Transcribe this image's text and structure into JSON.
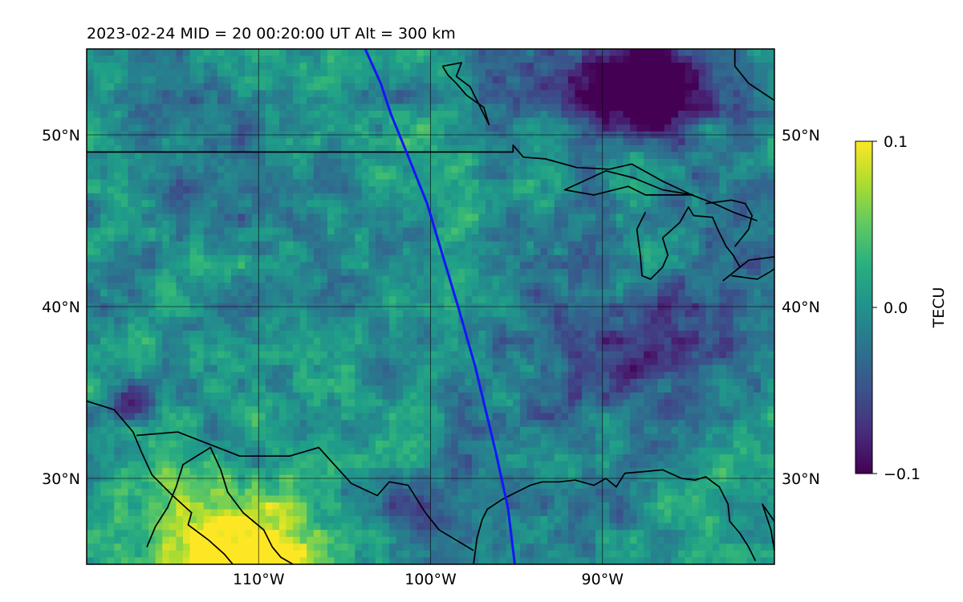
{
  "chart_data": {
    "type": "heatmap",
    "title": "2023-02-24  MID =  20    00:20:00  UT  Alt = 300 km",
    "map": {
      "projection": "plate-carree",
      "lon_range": [
        -120,
        -80
      ],
      "lat_range": [
        25,
        55
      ],
      "lon_ticks": [
        -110,
        -100,
        -90
      ],
      "lon_tick_labels": [
        "110°W",
        "100°W",
        "90°W"
      ],
      "lat_ticks": [
        30,
        40,
        50
      ],
      "lat_tick_labels": [
        "30°N",
        "40°N",
        "50°N"
      ],
      "grid": true,
      "coastlines": true,
      "borders": true
    },
    "colorbar": {
      "label": "TECU",
      "colormap": "viridis",
      "vmin": -0.1,
      "vmax": 0.1,
      "ticks": [
        0.1,
        0.0,
        -0.1
      ],
      "tick_labels": [
        "0.1",
        "0.0",
        "−0.1"
      ]
    },
    "overlay_track": {
      "color": "#1515ff",
      "points": [
        [
          -103.8,
          55
        ],
        [
          -102.9,
          53
        ],
        [
          -102.3,
          51.2
        ],
        [
          -101.4,
          49
        ],
        [
          -100.2,
          46
        ],
        [
          -99.3,
          43
        ],
        [
          -98.4,
          40
        ],
        [
          -97.4,
          36.5
        ],
        [
          -96.2,
          31.5
        ],
        [
          -95.5,
          28.3
        ],
        [
          -95.1,
          25
        ]
      ]
    },
    "pixel_grid": {
      "cols": 100,
      "rows": 75
    },
    "anomalies": [
      {
        "lon": -87.8,
        "lat": 52.8,
        "r": 2.6,
        "v": -0.09
      },
      {
        "lon": -86.5,
        "lat": 51.5,
        "r": 2.0,
        "v": -0.08
      },
      {
        "lon": -111.5,
        "lat": 26.3,
        "r": 2.4,
        "v": 0.095
      },
      {
        "lon": -108.5,
        "lat": 24.8,
        "r": 1.6,
        "v": 0.1
      },
      {
        "lon": -117.5,
        "lat": 27.0,
        "r": 3.2,
        "v": 0.05
      },
      {
        "lon": -87.2,
        "lat": 49.8,
        "r": 2.0,
        "v": 0.055
      },
      {
        "lon": -107.0,
        "lat": 53.4,
        "r": 1.6,
        "v": 0.035
      },
      {
        "lon": -117.5,
        "lat": 34.4,
        "r": 0.9,
        "v": -0.095
      },
      {
        "lon": -104.5,
        "lat": 31.5,
        "r": 3.5,
        "v": 0.025
      },
      {
        "lon": -96.0,
        "lat": 53.0,
        "r": 2.0,
        "v": -0.03
      },
      {
        "lon": -91.0,
        "lat": 54.0,
        "r": 2.5,
        "v": -0.035
      },
      {
        "lon": -85.0,
        "lat": 38.0,
        "r": 4.0,
        "v": -0.04
      },
      {
        "lon": -92.0,
        "lat": 36.0,
        "r": 4.0,
        "v": -0.03
      },
      {
        "lon": -101.0,
        "lat": 28.5,
        "r": 2.5,
        "v": -0.035
      },
      {
        "lon": -83.5,
        "lat": 30.0,
        "r": 3.0,
        "v": 0.02
      },
      {
        "lon": -112.5,
        "lat": 46.5,
        "r": 3.0,
        "v": -0.02
      }
    ],
    "coastlines": [
      [
        [
          -120,
          34.5
        ],
        [
          -118.4,
          34.0
        ],
        [
          -117.3,
          32.7
        ],
        [
          -116.8,
          31.5
        ],
        [
          -116.2,
          30.2
        ],
        [
          -115.0,
          29.0
        ],
        [
          -113.9,
          28.0
        ],
        [
          -114.1,
          27.3
        ],
        [
          -112.9,
          26.4
        ],
        [
          -112.0,
          25.6
        ],
        [
          -111.5,
          25.0
        ]
      ],
      [
        [
          -116.5,
          26.0
        ],
        [
          -116.0,
          27.2
        ],
        [
          -115.3,
          28.3
        ],
        [
          -114.8,
          29.5
        ],
        [
          -114.4,
          30.8
        ],
        [
          -112.8,
          31.8
        ],
        [
          -112.2,
          30.5
        ],
        [
          -111.8,
          29.2
        ],
        [
          -110.9,
          28.0
        ],
        [
          -109.7,
          27.0
        ],
        [
          -109.2,
          26.0
        ],
        [
          -108.7,
          25.4
        ],
        [
          -108.0,
          25.0
        ]
      ],
      [
        [
          -97.5,
          25.0
        ],
        [
          -97.3,
          26.5
        ],
        [
          -97.0,
          27.6
        ],
        [
          -96.7,
          28.2
        ],
        [
          -95.8,
          28.8
        ],
        [
          -95.0,
          29.2
        ],
        [
          -94.2,
          29.6
        ],
        [
          -93.5,
          29.8
        ],
        [
          -92.5,
          29.8
        ],
        [
          -91.6,
          29.9
        ],
        [
          -90.5,
          29.6
        ],
        [
          -89.8,
          30.0
        ],
        [
          -89.2,
          29.5
        ],
        [
          -88.7,
          30.3
        ],
        [
          -87.5,
          30.4
        ],
        [
          -86.5,
          30.5
        ],
        [
          -85.4,
          30.0
        ],
        [
          -84.6,
          29.9
        ],
        [
          -84.0,
          30.1
        ],
        [
          -83.2,
          29.5
        ],
        [
          -82.7,
          28.5
        ],
        [
          -82.6,
          27.5
        ],
        [
          -82.0,
          26.8
        ],
        [
          -81.5,
          26.0
        ],
        [
          -81.1,
          25.2
        ]
      ],
      [
        [
          -80.0,
          27.5
        ],
        [
          -80.7,
          28.5
        ],
        [
          -80.2,
          27.0
        ],
        [
          -80.0,
          25.8
        ]
      ],
      [
        [
          -84.7,
          46.5
        ],
        [
          -86.5,
          46.8
        ],
        [
          -88.2,
          47.5
        ],
        [
          -89.8,
          47.9
        ],
        [
          -92.2,
          46.8
        ],
        [
          -90.5,
          46.5
        ],
        [
          -88.5,
          47.0
        ],
        [
          -87.5,
          46.5
        ],
        [
          -84.7,
          46.5
        ]
      ],
      [
        [
          -87.5,
          45.5
        ],
        [
          -88.0,
          44.5
        ],
        [
          -87.8,
          43.0
        ],
        [
          -87.7,
          41.8
        ],
        [
          -87.2,
          41.6
        ],
        [
          -86.5,
          42.3
        ],
        [
          -86.2,
          43.0
        ],
        [
          -86.5,
          44.0
        ],
        [
          -85.5,
          44.9
        ],
        [
          -85.0,
          45.8
        ],
        [
          -84.7,
          45.3
        ],
        [
          -83.6,
          45.2
        ],
        [
          -83.3,
          44.5
        ],
        [
          -82.8,
          43.5
        ],
        [
          -82.4,
          43.0
        ],
        [
          -82.0,
          42.3
        ]
      ],
      [
        [
          -82.5,
          41.8
        ],
        [
          -81.0,
          41.6
        ],
        [
          -80.3,
          42.0
        ],
        [
          -80.0,
          42.2
        ]
      ],
      [
        [
          -83.0,
          41.5
        ],
        [
          -81.5,
          42.7
        ],
        [
          -80.0,
          42.9
        ]
      ],
      [
        [
          -82.3,
          43.5
        ],
        [
          -81.5,
          44.5
        ],
        [
          -81.3,
          45.3
        ],
        [
          -81.7,
          46.0
        ],
        [
          -82.5,
          46.2
        ],
        [
          -84.0,
          46.0
        ]
      ],
      [
        [
          -99.3,
          54.0
        ],
        [
          -98.2,
          54.2
        ],
        [
          -98.5,
          53.4
        ],
        [
          -97.7,
          52.8
        ],
        [
          -97.2,
          51.8
        ],
        [
          -96.6,
          50.6
        ],
        [
          -96.9,
          51.6
        ],
        [
          -97.9,
          52.3
        ],
        [
          -98.5,
          53.0
        ],
        [
          -99.0,
          53.5
        ],
        [
          -99.3,
          54.0
        ]
      ],
      [
        [
          -80.0,
          52.0
        ],
        [
          -81.5,
          53.0
        ],
        [
          -82.3,
          54.0
        ],
        [
          -82.3,
          55.0
        ]
      ]
    ],
    "borders": [
      [
        [
          -120,
          49
        ],
        [
          -95.2,
          49
        ],
        [
          -95.2,
          49.4
        ],
        [
          -94.6,
          48.7
        ],
        [
          -93.3,
          48.6
        ],
        [
          -91.5,
          48.1
        ],
        [
          -89.6,
          48.0
        ],
        [
          -88.3,
          48.3
        ],
        [
          -86.5,
          47.3
        ],
        [
          -84.8,
          46.5
        ],
        [
          -83.5,
          46.0
        ],
        [
          -82.4,
          45.5
        ],
        [
          -81.0,
          45.0
        ]
      ],
      [
        [
          -117.1,
          32.5
        ],
        [
          -114.7,
          32.7
        ],
        [
          -111.1,
          31.3
        ],
        [
          -108.2,
          31.3
        ],
        [
          -106.5,
          31.8
        ],
        [
          -104.6,
          29.7
        ],
        [
          -103.1,
          29.0
        ],
        [
          -102.4,
          29.8
        ],
        [
          -101.3,
          29.6
        ],
        [
          -100.3,
          28.0
        ],
        [
          -99.5,
          27.0
        ],
        [
          -97.5,
          25.8
        ]
      ]
    ]
  }
}
